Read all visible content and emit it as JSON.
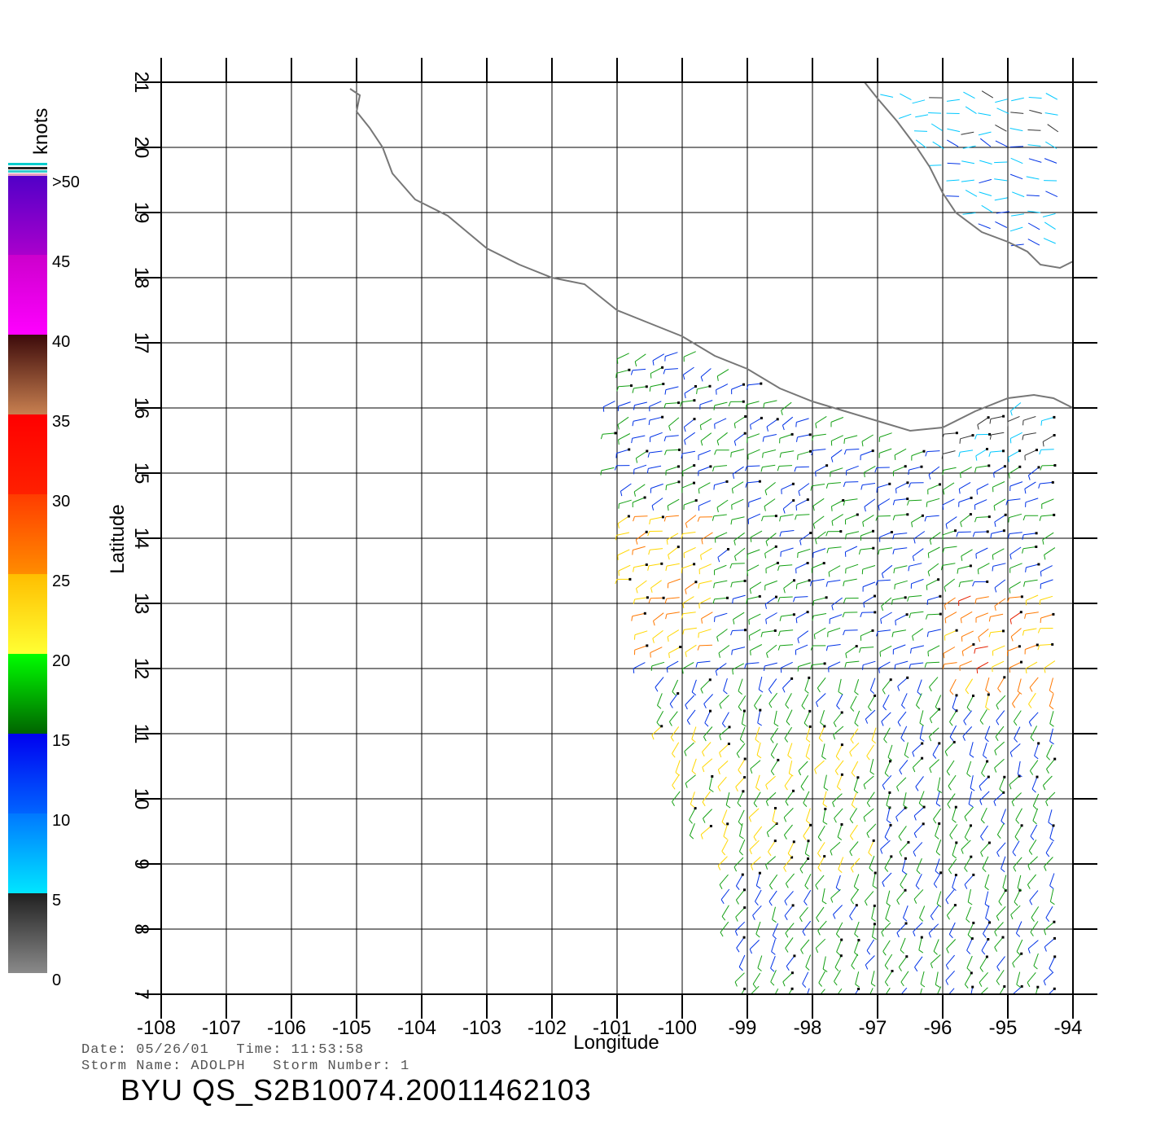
{
  "map": {
    "lon_range": [
      -108,
      -94
    ],
    "lat_range": [
      7,
      21
    ],
    "lon_ticks": [
      "-108",
      "-107",
      "-106",
      "-105",
      "-104",
      "-103",
      "-102",
      "-101",
      "-100",
      "-99",
      "-98",
      "-97",
      "-96",
      "-95",
      "-94"
    ],
    "lat_ticks": [
      "7",
      "8",
      "9",
      "10",
      "11",
      "12",
      "13",
      "14",
      "15",
      "16",
      "17",
      "18",
      "19",
      "20",
      "21"
    ],
    "xlabel": "Longitude",
    "ylabel": "Latitude",
    "coastline_color": "#777777",
    "grid": true,
    "coastline": [
      [
        -105.1,
        20.9
      ],
      [
        -104.95,
        20.8
      ],
      [
        -105.0,
        20.55
      ],
      [
        -104.8,
        20.3
      ],
      [
        -104.6,
        20.0
      ],
      [
        -104.45,
        19.6
      ],
      [
        -104.1,
        19.2
      ],
      [
        -103.6,
        18.95
      ],
      [
        -103.3,
        18.7
      ],
      [
        -103.0,
        18.45
      ],
      [
        -102.5,
        18.2
      ],
      [
        -102.0,
        18.0
      ],
      [
        -101.5,
        17.9
      ],
      [
        -101.0,
        17.5
      ],
      [
        -100.5,
        17.3
      ],
      [
        -100.0,
        17.1
      ],
      [
        -99.5,
        16.8
      ],
      [
        -99.0,
        16.6
      ],
      [
        -98.5,
        16.3
      ],
      [
        -98.0,
        16.1
      ],
      [
        -97.5,
        15.95
      ],
      [
        -97.0,
        15.8
      ],
      [
        -96.5,
        15.65
      ],
      [
        -96.0,
        15.7
      ],
      [
        -95.5,
        15.95
      ],
      [
        -95.0,
        16.15
      ],
      [
        -94.6,
        16.2
      ],
      [
        -94.3,
        16.15
      ],
      [
        -94.0,
        16.0
      ]
    ],
    "gulf_coast": [
      [
        -97.2,
        21.0
      ],
      [
        -97.0,
        20.75
      ],
      [
        -96.7,
        20.4
      ],
      [
        -96.4,
        20.0
      ],
      [
        -96.2,
        19.7
      ],
      [
        -96.0,
        19.3
      ],
      [
        -95.8,
        19.0
      ],
      [
        -95.4,
        18.7
      ],
      [
        -95.0,
        18.55
      ],
      [
        -94.7,
        18.4
      ],
      [
        -94.5,
        18.2
      ],
      [
        -94.2,
        18.15
      ],
      [
        -94.0,
        18.25
      ]
    ]
  },
  "colorbar": {
    "unit": "knots",
    "labels": [
      ">50",
      "45",
      "40",
      "35",
      "30",
      "25",
      "20",
      "15",
      "10",
      "5",
      "0"
    ],
    "bands": [
      {
        "from": 0,
        "to": 5,
        "colors": [
          "#8a8a8a",
          "#202020"
        ]
      },
      {
        "from": 5,
        "to": 10,
        "colors": [
          "#00e6ff",
          "#0078ff"
        ]
      },
      {
        "from": 10,
        "to": 15,
        "colors": [
          "#0064ff",
          "#0000f0"
        ]
      },
      {
        "from": 15,
        "to": 20,
        "colors": [
          "#006400",
          "#00ff00"
        ]
      },
      {
        "from": 20,
        "to": 25,
        "colors": [
          "#ffff33",
          "#ffbe00"
        ]
      },
      {
        "from": 25,
        "to": 30,
        "colors": [
          "#ff8c00",
          "#ff3c00"
        ]
      },
      {
        "from": 30,
        "to": 35,
        "colors": [
          "#ff2000",
          "#ff0000"
        ]
      },
      {
        "from": 35,
        "to": 40,
        "colors": [
          "#c88050",
          "#3c0a0a"
        ]
      },
      {
        "from": 40,
        "to": 45,
        "colors": [
          "#ff00ff",
          "#cc00cc"
        ]
      },
      {
        "from": 45,
        "to": 50,
        "colors": [
          "#aa00cc",
          "#5000c8"
        ]
      }
    ]
  },
  "info": {
    "date_line": "Date: 05/26/01   Time: 11:53:58",
    "storm_line": "Storm Name: ADOLPH   Storm Number: 1",
    "title": "BYU QS_S2B10074.20011462103"
  }
}
